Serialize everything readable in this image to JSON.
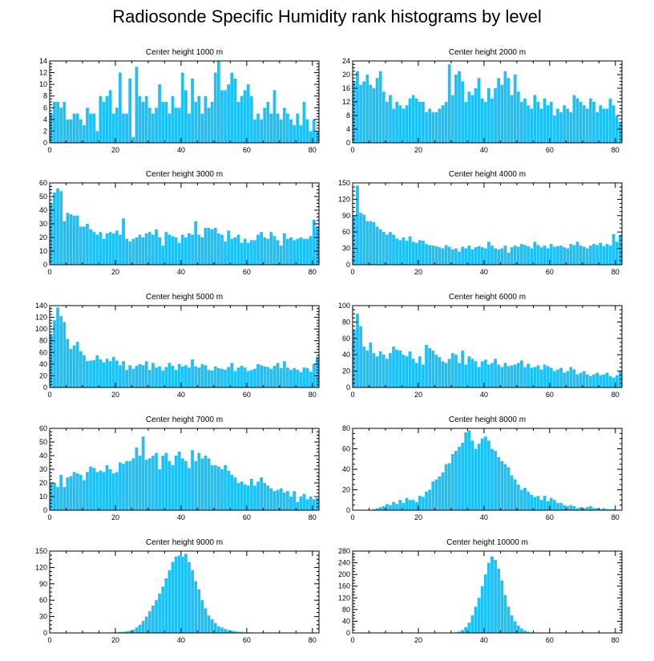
{
  "title": "Radiosonde Specific Humidity rank histograms by level",
  "bar_color": "#1ec0f8",
  "chart_data": [
    {
      "type": "bar",
      "title": "Center height 1000 m",
      "xlim": [
        0,
        82
      ],
      "ylim": [
        0,
        14
      ],
      "yticks": [
        0,
        2,
        4,
        6,
        8,
        10,
        12,
        14
      ],
      "xticks": [
        0,
        20,
        40,
        60,
        80
      ],
      "values": [
        5,
        7,
        7,
        6,
        7,
        4,
        4,
        5,
        5,
        4,
        3,
        6,
        5,
        5,
        2,
        8,
        7,
        8,
        9,
        5,
        6,
        12,
        5,
        5,
        11,
        1,
        13,
        8,
        7,
        8,
        6,
        5,
        6,
        10,
        7,
        7,
        5,
        8,
        6,
        6,
        12,
        9,
        5,
        11,
        7,
        8,
        5,
        8,
        6,
        7,
        12,
        14,
        9,
        9,
        10,
        12,
        11,
        7,
        8,
        9,
        10,
        8,
        4,
        5,
        4,
        6,
        7,
        5,
        9,
        5,
        4,
        6,
        5,
        4,
        3,
        5,
        3,
        7,
        4,
        2,
        4,
        2
      ]
    },
    {
      "type": "bar",
      "title": "Center height 2000 m",
      "xlim": [
        0,
        82
      ],
      "ylim": [
        0,
        24
      ],
      "yticks": [
        0,
        4,
        8,
        12,
        16,
        20,
        24
      ],
      "xticks": [
        0,
        20,
        40,
        60,
        80
      ],
      "values": [
        18,
        21,
        17,
        18,
        20,
        17,
        16,
        19,
        21,
        15,
        12,
        14,
        10,
        12,
        11,
        10,
        11,
        13,
        14,
        13,
        12,
        12,
        9,
        10,
        9,
        9,
        10,
        11,
        12,
        23,
        14,
        20,
        21,
        18,
        12,
        15,
        14,
        16,
        19,
        13,
        12,
        16,
        13,
        16,
        19,
        17,
        21,
        19,
        14,
        20,
        15,
        12,
        13,
        11,
        10,
        14,
        12,
        10,
        13,
        11,
        12,
        8,
        10,
        9,
        11,
        10,
        9,
        14,
        13,
        12,
        11,
        10,
        13,
        12,
        9,
        11,
        10,
        10,
        13,
        11,
        8,
        6
      ]
    },
    {
      "type": "bar",
      "title": "Center height 3000 m",
      "xlim": [
        0,
        82
      ],
      "ylim": [
        0,
        60
      ],
      "yticks": [
        0,
        10,
        20,
        30,
        40,
        50,
        60
      ],
      "xticks": [
        0,
        20,
        40,
        60,
        80
      ],
      "values": [
        45,
        53,
        56,
        54,
        32,
        38,
        37,
        36,
        36,
        28,
        28,
        30,
        26,
        24,
        22,
        24,
        19,
        23,
        24,
        23,
        25,
        22,
        34,
        19,
        17,
        19,
        20,
        22,
        20,
        23,
        24,
        22,
        26,
        20,
        14,
        24,
        22,
        21,
        20,
        16,
        22,
        20,
        23,
        22,
        32,
        22,
        20,
        27,
        27,
        26,
        27,
        23,
        22,
        17,
        25,
        19,
        20,
        22,
        16,
        19,
        16,
        18,
        18,
        22,
        24,
        20,
        19,
        24,
        21,
        18,
        14,
        23,
        19,
        20,
        18,
        19,
        20,
        19,
        19,
        21,
        33,
        28
      ]
    },
    {
      "type": "bar",
      "title": "Center height 4000 m",
      "xlim": [
        0,
        82
      ],
      "ylim": [
        0,
        150
      ],
      "yticks": [
        0,
        30,
        60,
        90,
        120,
        150
      ],
      "xticks": [
        0,
        20,
        40,
        60,
        80
      ],
      "values": [
        90,
        145,
        95,
        92,
        80,
        80,
        78,
        70,
        65,
        60,
        55,
        60,
        55,
        48,
        45,
        50,
        44,
        52,
        42,
        40,
        45,
        44,
        38,
        36,
        35,
        34,
        32,
        30,
        36,
        33,
        28,
        30,
        24,
        33,
        30,
        35,
        28,
        32,
        34,
        32,
        30,
        42,
        35,
        30,
        28,
        30,
        35,
        22,
        32,
        35,
        33,
        38,
        36,
        34,
        30,
        42,
        36,
        32,
        35,
        30,
        38,
        33,
        34,
        35,
        32,
        30,
        38,
        36,
        42,
        35,
        33,
        30,
        35,
        38,
        36,
        40,
        34,
        38,
        35,
        56,
        42,
        55
      ]
    },
    {
      "type": "bar",
      "title": "Center height 5000 m",
      "xlim": [
        0,
        82
      ],
      "ylim": [
        0,
        140
      ],
      "yticks": [
        0,
        20,
        40,
        60,
        80,
        100,
        120,
        140
      ],
      "xticks": [
        0,
        20,
        40,
        60,
        80
      ],
      "values": [
        90,
        115,
        137,
        122,
        112,
        83,
        66,
        72,
        78,
        62,
        55,
        45,
        46,
        47,
        55,
        48,
        43,
        49,
        45,
        52,
        46,
        38,
        45,
        30,
        38,
        32,
        37,
        40,
        38,
        45,
        30,
        42,
        34,
        36,
        29,
        35,
        42,
        37,
        30,
        40,
        36,
        38,
        34,
        48,
        36,
        34,
        40,
        38,
        30,
        29,
        36,
        33,
        32,
        30,
        35,
        42,
        28,
        34,
        37,
        34,
        28,
        30,
        32,
        40,
        38,
        36,
        35,
        32,
        37,
        42,
        33,
        45,
        34,
        30,
        33,
        30,
        26,
        34,
        33,
        27,
        40,
        52
      ]
    },
    {
      "type": "bar",
      "title": "Center height 6000 m",
      "xlim": [
        0,
        82
      ],
      "ylim": [
        0,
        100
      ],
      "yticks": [
        0,
        20,
        40,
        60,
        80,
        100
      ],
      "xticks": [
        0,
        20,
        40,
        60,
        80
      ],
      "values": [
        70,
        90,
        75,
        50,
        45,
        55,
        42,
        38,
        44,
        40,
        35,
        42,
        50,
        46,
        45,
        40,
        38,
        44,
        35,
        30,
        38,
        28,
        52,
        48,
        45,
        40,
        37,
        32,
        30,
        35,
        42,
        40,
        30,
        45,
        28,
        38,
        35,
        32,
        25,
        32,
        34,
        28,
        30,
        35,
        28,
        25,
        30,
        26,
        27,
        28,
        30,
        33,
        25,
        29,
        24,
        25,
        27,
        22,
        28,
        26,
        24,
        20,
        22,
        24,
        18,
        20,
        25,
        22,
        16,
        18,
        20,
        16,
        14,
        16,
        18,
        15,
        16,
        18,
        14,
        12,
        15,
        20
      ]
    },
    {
      "type": "bar",
      "title": "Center height 7000 m",
      "xlim": [
        0,
        82
      ],
      "ylim": [
        0,
        60
      ],
      "yticks": [
        0,
        10,
        20,
        30,
        40,
        50,
        60
      ],
      "xticks": [
        0,
        20,
        40,
        60,
        80
      ],
      "values": [
        20,
        20,
        17,
        26,
        17,
        24,
        25,
        28,
        27,
        26,
        22,
        28,
        32,
        31,
        28,
        29,
        28,
        33,
        30,
        27,
        28,
        35,
        34,
        36,
        36,
        38,
        46,
        40,
        54,
        37,
        38,
        40,
        42,
        30,
        40,
        42,
        36,
        33,
        40,
        43,
        38,
        36,
        31,
        44,
        36,
        42,
        38,
        40,
        38,
        33,
        33,
        32,
        30,
        33,
        29,
        26,
        24,
        20,
        21,
        19,
        18,
        23,
        18,
        21,
        24,
        20,
        18,
        16,
        14,
        15,
        16,
        13,
        14,
        10,
        14,
        6,
        10,
        12,
        8,
        10,
        8,
        9
      ]
    },
    {
      "type": "bar",
      "title": "Center height 8000 m",
      "xlim": [
        0,
        82
      ],
      "ylim": [
        0,
        80
      ],
      "yticks": [
        0,
        20,
        40,
        60,
        80
      ],
      "xticks": [
        0,
        20,
        40,
        60,
        80
      ],
      "values": [
        0,
        0,
        0,
        0,
        0,
        0,
        1,
        2,
        3,
        4,
        6,
        5,
        8,
        6,
        10,
        7,
        12,
        10,
        10,
        8,
        14,
        13,
        18,
        20,
        28,
        30,
        33,
        37,
        45,
        46,
        55,
        58,
        62,
        66,
        76,
        78,
        68,
        60,
        65,
        70,
        72,
        68,
        60,
        58,
        52,
        48,
        45,
        42,
        34,
        30,
        25,
        20,
        22,
        18,
        15,
        13,
        14,
        10,
        14,
        9,
        12,
        10,
        7,
        7,
        5,
        4,
        5,
        4,
        2,
        3,
        2,
        3,
        4,
        2,
        2,
        1,
        2,
        1,
        1,
        1,
        0,
        0
      ]
    },
    {
      "type": "bar",
      "title": "Center height 9000 m",
      "xlim": [
        0,
        82
      ],
      "ylim": [
        0,
        150
      ],
      "yticks": [
        0,
        30,
        60,
        90,
        120,
        150
      ],
      "xticks": [
        0,
        20,
        40,
        60,
        80
      ],
      "values": [
        0,
        0,
        0,
        0,
        0,
        0,
        0,
        0,
        0,
        0,
        0,
        0,
        0,
        0,
        0,
        0,
        0,
        0,
        0,
        1,
        1,
        2,
        2,
        3,
        4,
        6,
        10,
        15,
        22,
        30,
        40,
        50,
        60,
        72,
        85,
        100,
        115,
        130,
        140,
        142,
        140,
        145,
        130,
        115,
        95,
        80,
        60,
        45,
        32,
        25,
        18,
        12,
        10,
        7,
        5,
        4,
        3,
        2,
        2,
        1,
        1,
        1,
        0,
        0,
        0,
        0,
        0,
        0,
        0,
        0,
        0,
        0,
        0,
        0,
        0,
        0,
        0,
        0,
        0,
        0,
        0,
        0
      ]
    },
    {
      "type": "bar",
      "title": "Center height 10000 m",
      "xlim": [
        0,
        82
      ],
      "ylim": [
        0,
        280
      ],
      "yticks": [
        0,
        40,
        80,
        120,
        160,
        200,
        240,
        280
      ],
      "xticks": [
        0,
        20,
        40,
        60,
        80
      ],
      "values": [
        0,
        0,
        0,
        0,
        0,
        0,
        0,
        0,
        0,
        0,
        0,
        0,
        0,
        0,
        0,
        0,
        0,
        0,
        0,
        0,
        0,
        0,
        0,
        0,
        0,
        0,
        0,
        0,
        0,
        0,
        1,
        2,
        5,
        10,
        20,
        35,
        60,
        90,
        120,
        160,
        200,
        240,
        262,
        250,
        220,
        180,
        130,
        90,
        60,
        40,
        25,
        15,
        8,
        4,
        2,
        1,
        0,
        0,
        0,
        0,
        0,
        0,
        0,
        0,
        0,
        0,
        0,
        0,
        0,
        0,
        0,
        0,
        0,
        0,
        0,
        0,
        0,
        0,
        0,
        0,
        0,
        0
      ]
    }
  ]
}
